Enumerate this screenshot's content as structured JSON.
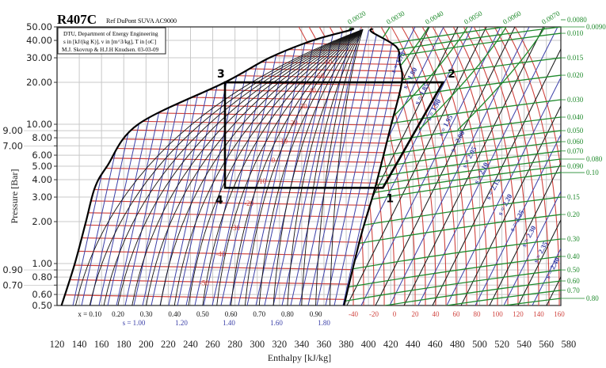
{
  "chart_data": {
    "type": "line",
    "title": "R407C",
    "subtitle": "Ref DuPont SUVA AC9000",
    "info_box": [
      "DTU, Department of Energy Engineering",
      "s in [kJ/(kg K)], v in [m^3/kg], T in [oC]",
      "M.J. Skovrup & H.J.H Knudsen. 03-03-09"
    ],
    "xlabel": "Enthalpy [kJ/kg]",
    "ylabel": "Pressure [Bar]",
    "xlim": [
      120,
      573
    ],
    "ylim": [
      0.5,
      50
    ],
    "yscale": "log",
    "grid": true,
    "x_ticks": [
      "120",
      "140",
      "160",
      "180",
      "200",
      "220",
      "240",
      "260",
      "280",
      "300",
      "320",
      "340",
      "360",
      "380",
      "400",
      "420",
      "440",
      "460",
      "480",
      "500",
      "520",
      "540",
      "560",
      "580"
    ],
    "y_ticks": [
      "50.00",
      "40.00",
      "30.00",
      "20.00",
      "10.00",
      "9.00",
      "8.00",
      "7.00",
      "6.00",
      "5.00",
      "4.00",
      "3.00",
      "2.00",
      "1.00",
      "0.90",
      "0.80",
      "0.70",
      "0.60",
      "0.50"
    ],
    "saturated_liquid": [
      [
        124,
        0.5
      ],
      [
        136,
        1
      ],
      [
        146,
        2
      ],
      [
        154,
        3.5
      ],
      [
        165,
        5
      ],
      [
        193,
        10
      ],
      [
        271,
        20
      ],
      [
        311,
        30
      ],
      [
        350,
        40
      ],
      [
        384,
        47.5
      ]
    ],
    "saturated_vapor": [
      [
        403,
        46
      ],
      [
        425,
        36
      ],
      [
        428,
        28
      ],
      [
        430,
        20
      ],
      [
        420,
        9.6
      ],
      [
        406,
        3.5
      ],
      [
        393,
        1.55
      ],
      [
        378,
        0.5
      ]
    ],
    "cycle": [
      {
        "label": "1",
        "h": 413,
        "p": 3.5
      },
      {
        "label": "2",
        "h": 467,
        "p": 20
      },
      {
        "label": "3",
        "h": 271,
        "p": 20
      },
      {
        "label": "4",
        "h": 271,
        "p": 3.5
      }
    ],
    "quality_labels": [
      "x = 0.10",
      "0.20",
      "0.30",
      "0.40",
      "0.50",
      "0.60",
      "0.70",
      "0.80",
      "0.90"
    ],
    "quality_values": [
      0.1,
      0.2,
      0.3,
      0.4,
      0.5,
      0.6,
      0.7,
      0.8,
      0.9
    ],
    "entropy_bottom_labels": [
      "s = 1.00",
      "1.20",
      "1.40",
      "1.60",
      "1.80"
    ],
    "entropy_bottom_values": [
      1.0,
      1.2,
      1.4,
      1.6,
      1.8
    ],
    "entropy_labels": [
      "s = 1.75",
      "s = 1.80",
      "s = 1.85",
      "s = 1.90",
      "s = 1.95",
      "s = 2.00",
      "s = 2.05",
      "s = 2.10",
      "s = 2.15",
      "s = 2.20",
      "s = 2.25",
      "s = 2.30",
      "s = 2.35",
      "s = 2.40"
    ],
    "isotherm_labels_dome": [
      "60",
      "50",
      "40",
      "30",
      "20",
      "10",
      "0",
      "-10",
      "-20",
      "-30",
      "-40",
      "-50"
    ],
    "isotherm_labels_bottom": [
      "-40",
      "-20",
      "0",
      "20",
      "40",
      "60",
      "80",
      "100",
      "120",
      "140",
      "160"
    ],
    "isochore_labels_top": [
      "0.0020",
      "0.0030",
      "0.0040",
      "0.0050",
      "0.0060",
      "0.0070"
    ],
    "isochore_labels_right": [
      "0.0080",
      "0.0090",
      "0.010",
      "0.015",
      "0.020",
      "0.030",
      "0.040",
      "0.050",
      "0.060",
      "0.070",
      "0.080",
      "0.090",
      "0.10",
      "0.15",
      "0.20",
      "0.30",
      "0.40",
      "0.50",
      "0.60",
      "0.70",
      "0.80"
    ],
    "colors": {
      "isotherm": "#d0443f",
      "isentrope": "#3a3fa8",
      "isochore": "#1f8a2c",
      "quality": "#111111",
      "cycle": "#000000",
      "grid": "#c8c8c8"
    }
  }
}
